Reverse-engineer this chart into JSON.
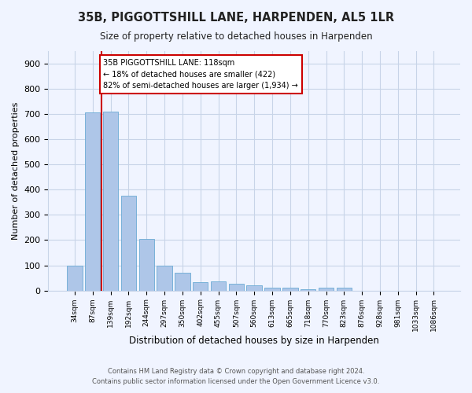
{
  "title": "35B, PIGGOTTSHILL LANE, HARPENDEN, AL5 1LR",
  "subtitle": "Size of property relative to detached houses in Harpenden",
  "xlabel": "Distribution of detached houses by size in Harpenden",
  "ylabel": "Number of detached properties",
  "categories": [
    "34sqm",
    "87sqm",
    "139sqm",
    "192sqm",
    "244sqm",
    "297sqm",
    "350sqm",
    "402sqm",
    "455sqm",
    "507sqm",
    "560sqm",
    "613sqm",
    "665sqm",
    "718sqm",
    "770sqm",
    "823sqm",
    "876sqm",
    "928sqm",
    "981sqm",
    "1033sqm",
    "1086sqm"
  ],
  "values": [
    100,
    707,
    710,
    375,
    205,
    100,
    72,
    33,
    35,
    28,
    22,
    10,
    10,
    5,
    10,
    10,
    0,
    0,
    0,
    0,
    0
  ],
  "bar_color": "#aec6e8",
  "bar_edge_color": "#6aaad4",
  "property_line_label": "35B PIGGOTTSHILL LANE: 118sqm",
  "annotation_line1": "← 18% of detached houses are smaller (422)",
  "annotation_line2": "82% of semi-detached houses are larger (1,934) →",
  "annotation_box_facecolor": "#ffffff",
  "annotation_box_edgecolor": "#cc0000",
  "vline_color": "#cc0000",
  "ylim": [
    0,
    950
  ],
  "yticks": [
    0,
    100,
    200,
    300,
    400,
    500,
    600,
    700,
    800,
    900
  ],
  "footer1": "Contains HM Land Registry data © Crown copyright and database right 2024.",
  "footer2": "Contains public sector information licensed under the Open Government Licence v3.0.",
  "bg_color": "#f0f4ff",
  "grid_color": "#c8d4e8"
}
